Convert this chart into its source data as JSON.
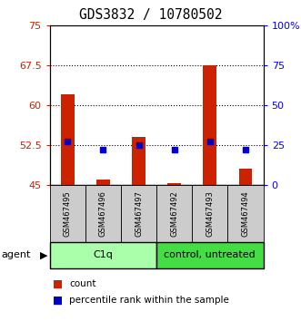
{
  "title": "GDS3832 / 10780502",
  "samples": [
    "GSM467495",
    "GSM467496",
    "GSM467497",
    "GSM467492",
    "GSM467493",
    "GSM467494"
  ],
  "count_values": [
    62.0,
    46.0,
    54.0,
    45.2,
    67.5,
    48.0
  ],
  "percentile_values": [
    27.0,
    22.0,
    25.0,
    22.0,
    27.0,
    22.0
  ],
  "ylim_left": [
    45,
    75
  ],
  "ylim_right": [
    0,
    100
  ],
  "yticks_left": [
    45,
    52.5,
    60,
    67.5,
    75
  ],
  "yticks_right": [
    0,
    25,
    50,
    75,
    100
  ],
  "ytick_labels_left": [
    "45",
    "52.5",
    "60",
    "67.5",
    "75"
  ],
  "ytick_labels_right": [
    "0",
    "25",
    "50",
    "75",
    "100%"
  ],
  "hlines": [
    52.5,
    60,
    67.5
  ],
  "bar_color": "#cc2200",
  "square_color": "#0000cc",
  "bar_bottom": 45,
  "groups": [
    {
      "label": "C1q",
      "indices": [
        0,
        1,
        2
      ],
      "color": "#aaffaa"
    },
    {
      "label": "control, untreated",
      "indices": [
        3,
        4,
        5
      ],
      "color": "#44dd44"
    }
  ],
  "agent_label": "agent",
  "legend_count_label": "count",
  "legend_pct_label": "percentile rank within the sample",
  "title_fontsize": 10.5,
  "tick_fontsize": 8,
  "sample_fontsize": 6,
  "group_fontsize": 8,
  "legend_fontsize": 7.5
}
